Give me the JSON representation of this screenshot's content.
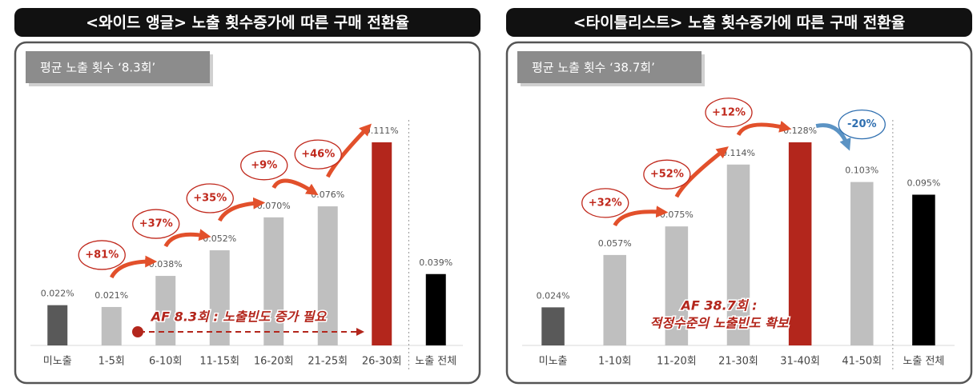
{
  "chart_data": [
    {
      "type": "bar",
      "title": "<와이드 앵글> 노출 횟수증가에 따른 구매 전환율",
      "subtitle": "평균 노출 횟수 ‘8.3회’",
      "categories": [
        "미노출",
        "1-5회",
        "6-10회",
        "11-15회",
        "16-20회",
        "21-25회",
        "26-30회",
        "노출 전체"
      ],
      "values": [
        0.022,
        0.021,
        0.038,
        0.052,
        0.07,
        0.076,
        0.111,
        0.039
      ],
      "value_labels": [
        "0.022%",
        "0.021%",
        "0.038%",
        "0.052%",
        "0.070%",
        "0.076%",
        "0.111%",
        "0.039%"
      ],
      "colors": [
        "#595959",
        "#bfbfbf",
        "#bfbfbf",
        "#bfbfbf",
        "#bfbfbf",
        "#bfbfbf",
        "#b3261c",
        "#000000"
      ],
      "changes": [
        null,
        null,
        "+81%",
        "+37%",
        "+35%",
        "+9%",
        "+46%",
        null
      ],
      "note": [
        "AF 8.3회 : 노출빈도 증가 필요"
      ]
    },
    {
      "type": "bar",
      "title": "<타이틀리스트> 노출 횟수증가에 따른 구매 전환율",
      "subtitle": "평균 노출 횟수 ‘38.7회’",
      "categories": [
        "미노출",
        "1-10회",
        "11-20회",
        "21-30회",
        "31-40회",
        "41-50회",
        "노출 전체"
      ],
      "values": [
        0.024,
        0.057,
        0.075,
        0.114,
        0.128,
        0.103,
        0.095
      ],
      "value_labels": [
        "0.024%",
        "0.057%",
        "0.075%",
        "0.114%",
        "0.128%",
        "0.103%",
        "0.095%"
      ],
      "colors": [
        "#595959",
        "#bfbfbf",
        "#bfbfbf",
        "#bfbfbf",
        "#b3261c",
        "#bfbfbf",
        "#000000"
      ],
      "changes": [
        null,
        null,
        "+32%",
        "+52%",
        "+12%",
        "-20%",
        null
      ],
      "note": [
        "AF 38.7회 :",
        "적정수준의 노출빈도 확보"
      ]
    }
  ]
}
